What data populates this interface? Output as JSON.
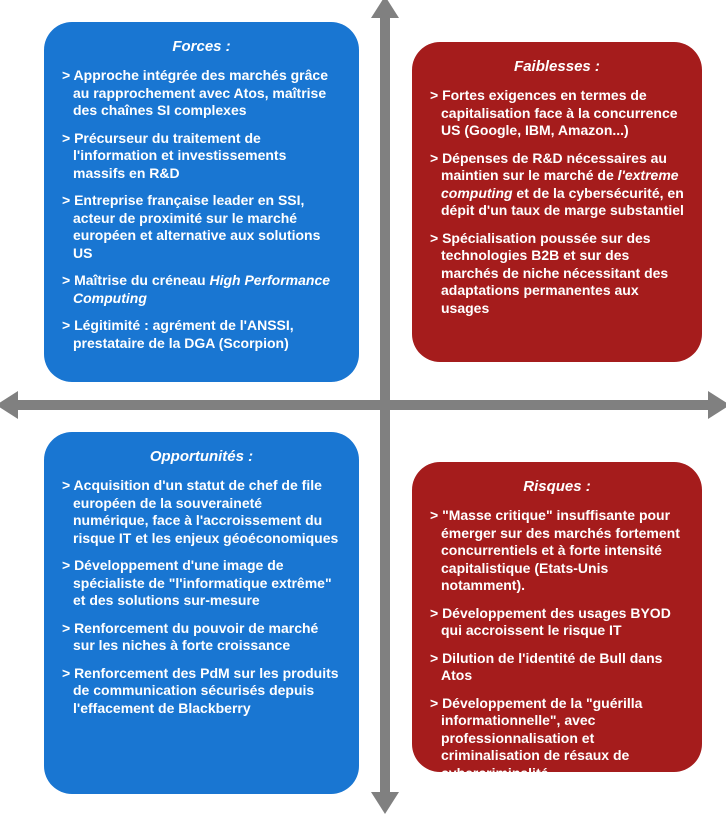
{
  "diagram": {
    "type": "swot-2x2",
    "background": "#ffffff",
    "axis_color": "#808080",
    "quadrants": {
      "forces": {
        "title": "Forces :",
        "color": "#1976d2",
        "items": [
          {
            "pre": "> Approche intégrée des marchés grâce au rapprochement avec Atos, maîtrise des chaînes SI complexes"
          },
          {
            "pre": "> Précurseur du traitement de l'information et investissements massifs en R&D"
          },
          {
            "pre": "> Entreprise française leader en SSI, acteur de proximité sur le marché européen et alternative aux solutions US"
          },
          {
            "pre": "> Maîtrise du créneau ",
            "ital": "High Performance Computing"
          },
          {
            "pre": "> Légitimité : agrément de l'ANSSI, prestataire de la DGA (Scorpion)"
          }
        ]
      },
      "faiblesses": {
        "title": "Faiblesses :",
        "color": "#a51c1c",
        "items": [
          {
            "pre": "> Fortes exigences en termes de capitalisation face à la concurrence US (Google, IBM, Amazon...)"
          },
          {
            "pre": "> Dépenses de R&D nécessaires au maintien sur le marché de ",
            "ital": "l'extreme computing",
            "post": " et de la cybersécurité, en dépit d'un taux de marge substantiel"
          },
          {
            "pre": "> Spécialisation poussée sur des technologies B2B et sur des marchés de niche nécessitant des adaptations permanentes aux usages"
          }
        ]
      },
      "opportunites": {
        "title": "Opportunités :",
        "color": "#1976d2",
        "items": [
          {
            "pre": "> Acquisition d'un statut de chef de file européen de la souveraineté numérique, face à l'accroissement du risque IT et les enjeux géoéconomiques"
          },
          {
            "pre": "> Développement d'une image de spécialiste de \"l'informatique extrême\" et des solutions sur-mesure"
          },
          {
            "pre": "> Renforcement du pouvoir de marché sur les niches à forte croissance"
          },
          {
            "pre": "> Renforcement des PdM sur les produits de communication sécurisés depuis l'effacement de Blackberry"
          }
        ]
      },
      "risques": {
        "title": "Risques :",
        "color": "#a51c1c",
        "items": [
          {
            "pre": "> \"Masse critique\" insuffisante pour émerger sur des marchés fortement concurrentiels et à forte intensité capitalistique (Etats-Unis notamment)."
          },
          {
            "pre": "> Développement des usages BYOD qui accroissent le risque IT"
          },
          {
            "pre": "> Dilution de l'identité de Bull dans Atos"
          },
          {
            "pre": "> Développement de la \"guérilla informationnelle\", avec professionnalisation et criminalisation de résaux de cybercriminalité"
          }
        ]
      }
    }
  }
}
